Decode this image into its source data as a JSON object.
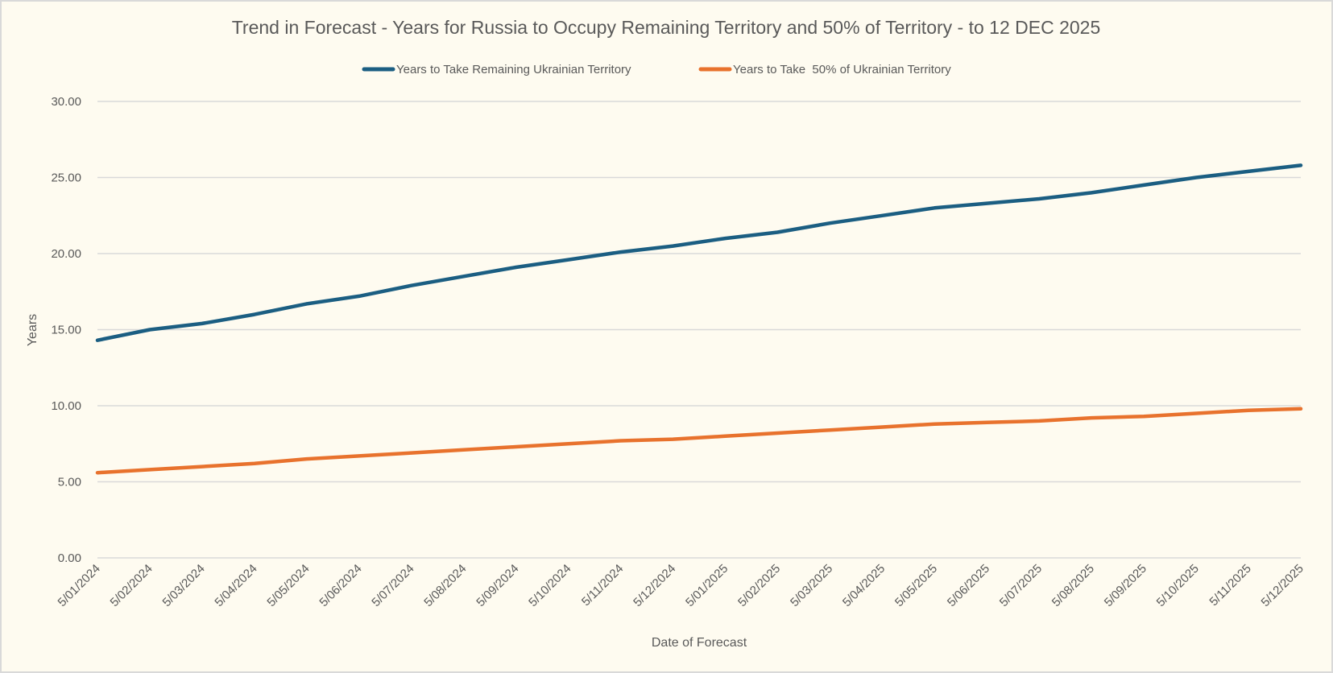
{
  "chart_data": {
    "type": "line",
    "title": "Trend in Forecast - Years for Russia to Occupy Remaining Territory and 50% of Territory - to 12 DEC 2025",
    "xlabel": "Date of Forecast",
    "ylabel": "Years",
    "ylim": [
      0,
      30
    ],
    "yticks": [
      "0.00",
      "5.00",
      "10.00",
      "15.00",
      "20.00",
      "25.00",
      "30.00"
    ],
    "grid": true,
    "legend_position": "top",
    "categories": [
      "5/01/2024",
      "5/02/2024",
      "5/03/2024",
      "5/04/2024",
      "5/05/2024",
      "5/06/2024",
      "5/07/2024",
      "5/08/2024",
      "5/09/2024",
      "5/10/2024",
      "5/11/2024",
      "5/12/2024",
      "5/01/2025",
      "5/02/2025",
      "5/03/2025",
      "5/04/2025",
      "5/05/2025",
      "5/06/2025",
      "5/07/2025",
      "5/08/2025",
      "5/09/2025",
      "5/10/2025",
      "5/11/2025",
      "5/12/2025"
    ],
    "series": [
      {
        "name": "Years to Take Remaining Ukrainian Territory",
        "color": "#1b5e82",
        "values": [
          14.3,
          15.0,
          15.4,
          16.0,
          16.7,
          17.2,
          17.9,
          18.5,
          19.1,
          19.6,
          20.1,
          20.5,
          21.0,
          21.4,
          22.0,
          22.5,
          23.0,
          23.3,
          23.6,
          24.0,
          24.5,
          25.0,
          25.4,
          25.8
        ]
      },
      {
        "name": "Years to Take  50% of Ukrainian Territory",
        "color": "#e8722d",
        "values": [
          5.6,
          5.8,
          6.0,
          6.2,
          6.5,
          6.7,
          6.9,
          7.1,
          7.3,
          7.5,
          7.7,
          7.8,
          8.0,
          8.2,
          8.4,
          8.6,
          8.8,
          8.9,
          9.0,
          9.2,
          9.3,
          9.5,
          9.7,
          9.8
        ]
      }
    ]
  }
}
